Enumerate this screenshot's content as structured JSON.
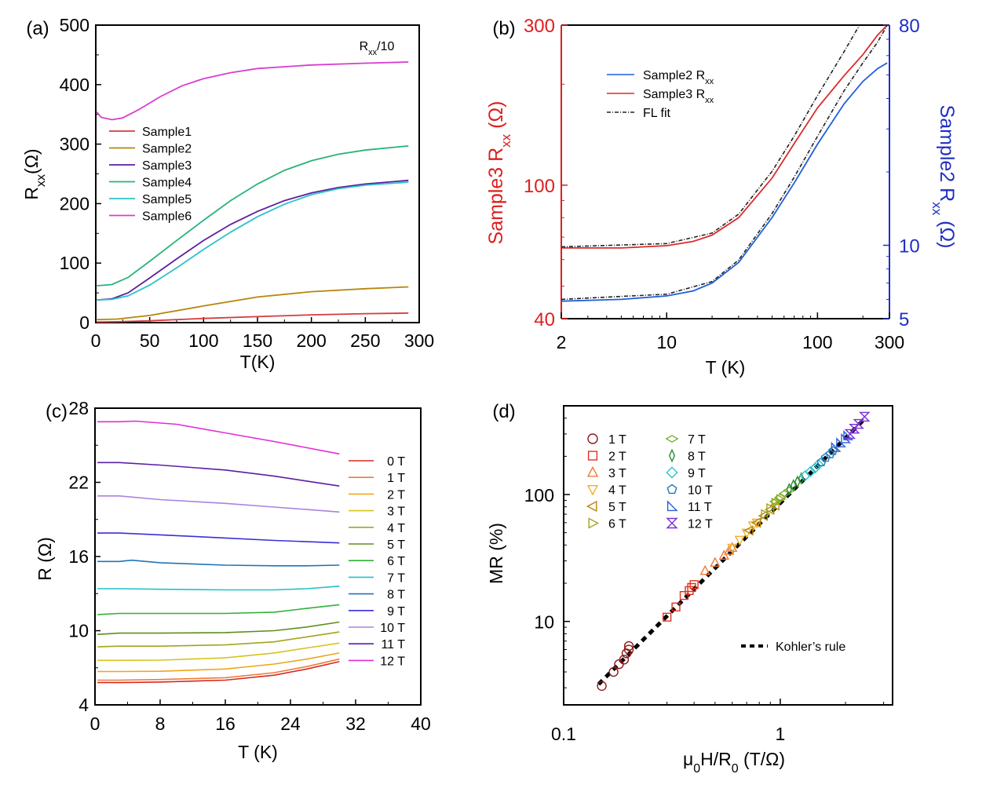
{
  "chart_data": [
    {
      "panel": "(a)",
      "type": "line",
      "xlabel": "T(K)",
      "ylabel_main": "R",
      "ylabel_sub": "xx",
      "ylabel_unit": "(Ω)",
      "xlim": [
        0,
        300
      ],
      "ylim": [
        0,
        500
      ],
      "xticks": [
        "0",
        "50",
        "100",
        "150",
        "200",
        "250",
        "300"
      ],
      "yticks": [
        "0",
        "100",
        "200",
        "300",
        "400",
        "500"
      ],
      "annotation_main": "R",
      "annotation_sub": "xx",
      "annotation_tail": "/10",
      "legend_position": "center-left",
      "series": [
        {
          "name": "Sample1",
          "color": "#d63b3b",
          "x": [
            1,
            20,
            50,
            100,
            150,
            200,
            250,
            290
          ],
          "y": [
            1,
            1.5,
            3,
            7,
            10,
            13,
            15,
            16
          ]
        },
        {
          "name": "Sample2",
          "color": "#b8860b",
          "x": [
            1,
            20,
            50,
            100,
            150,
            200,
            250,
            290
          ],
          "y": [
            5,
            6,
            12,
            28,
            43,
            52,
            57,
            60
          ]
        },
        {
          "name": "Sample3",
          "color": "#5b1f9e",
          "x": [
            1,
            15,
            30,
            50,
            75,
            100,
            125,
            150,
            175,
            200,
            225,
            250,
            290
          ],
          "y": [
            38,
            40,
            50,
            75,
            107,
            138,
            165,
            187,
            205,
            218,
            227,
            233,
            239
          ]
        },
        {
          "name": "Sample4",
          "color": "#2ab378",
          "x": [
            1,
            15,
            30,
            50,
            75,
            100,
            125,
            150,
            175,
            200,
            225,
            250,
            290
          ],
          "y": [
            62,
            64,
            76,
            103,
            138,
            172,
            205,
            233,
            256,
            272,
            283,
            290,
            297
          ]
        },
        {
          "name": "Sample5",
          "color": "#2cc2c8",
          "x": [
            1,
            15,
            30,
            50,
            75,
            100,
            125,
            150,
            175,
            200,
            225,
            250,
            290
          ],
          "y": [
            38,
            39,
            45,
            63,
            92,
            123,
            152,
            178,
            199,
            215,
            225,
            231,
            236
          ]
        },
        {
          "name": "Sample6",
          "color": "#d63fd0",
          "x": [
            1,
            5,
            15,
            25,
            40,
            60,
            80,
            100,
            125,
            150,
            200,
            250,
            290
          ],
          "y": [
            354,
            345,
            341,
            344,
            358,
            380,
            398,
            410,
            420,
            427,
            433,
            436,
            438
          ]
        }
      ]
    },
    {
      "panel": "(b)",
      "type": "line",
      "xscale": "log",
      "xlabel": "T (K)",
      "xticks": [
        "2",
        "10",
        "100",
        "300"
      ],
      "left_axis": {
        "ylabel_main": "Sample3 R",
        "ylabel_sub": "xx",
        "ylabel_unit": "(Ω)",
        "ylim": [
          40,
          300
        ],
        "yticks": [
          "40",
          "100",
          "300"
        ],
        "color": "#dd1f1f"
      },
      "right_axis": {
        "ylabel_main": "Sample2 R",
        "ylabel_sub": "xx",
        "ylabel_unit": "(Ω)",
        "ylim": [
          5,
          80
        ],
        "yticks": [
          "5",
          "10",
          "80"
        ],
        "color": "#1f2fc4"
      },
      "legend_position": "top-left",
      "series": [
        {
          "name": "Sample2 R",
          "name_sub": "xx",
          "axis": "right",
          "color": "#1f5fd8",
          "x": [
            2,
            5,
            10,
            15,
            20,
            30,
            50,
            70,
            100,
            150,
            200,
            250,
            290
          ],
          "y": [
            5.9,
            6.0,
            6.2,
            6.5,
            7.0,
            8.5,
            13,
            18,
            26,
            38,
            47,
            53,
            56
          ]
        },
        {
          "name": "Sample3 R",
          "name_sub": "xx",
          "axis": "left",
          "color": "#dd2a2a",
          "x": [
            2,
            5,
            10,
            15,
            20,
            30,
            50,
            70,
            100,
            150,
            200,
            250,
            290
          ],
          "y": [
            65,
            65,
            66,
            68,
            71,
            80,
            105,
            133,
            170,
            212,
            245,
            280,
            300
          ]
        },
        {
          "name": "FL fit",
          "axis": "left",
          "color": "#222222",
          "dash": true,
          "x": [
            2,
            10,
            20,
            30,
            50,
            70,
            100,
            150,
            190
          ],
          "y": [
            65.5,
            67,
            72,
            82,
            110,
            140,
            185,
            250,
            300
          ]
        },
        {
          "name": "FL fit",
          "axis": "right",
          "color": "#222222",
          "dash": true,
          "legend": false,
          "x": [
            2,
            10,
            20,
            30,
            50,
            70,
            100,
            150,
            200,
            250,
            290
          ],
          "y": [
            6.0,
            6.3,
            7.1,
            8.7,
            13.5,
            19,
            28,
            43,
            56,
            68,
            80
          ]
        }
      ]
    },
    {
      "panel": "(c)",
      "type": "line",
      "xlabel": "T (K)",
      "ylabel": "R (Ω)",
      "xlim": [
        0,
        40
      ],
      "ylim": [
        4,
        28
      ],
      "xticks": [
        "0",
        "8",
        "16",
        "24",
        "32",
        "40"
      ],
      "yticks": [
        "4",
        "10",
        "16",
        "22",
        "28"
      ],
      "legend_position": "right",
      "series": [
        {
          "name": "0 T",
          "color": "#d62a1f",
          "x": [
            0.3,
            3,
            8,
            16,
            22,
            26,
            30
          ],
          "y": [
            5.8,
            5.8,
            5.85,
            6.0,
            6.4,
            6.9,
            7.5
          ]
        },
        {
          "name": "1 T",
          "color": "#f07a3c",
          "x": [
            0.3,
            3,
            8,
            16,
            22,
            26,
            30
          ],
          "y": [
            6.0,
            6.0,
            6.05,
            6.2,
            6.6,
            7.1,
            7.7
          ]
        },
        {
          "name": "2 T",
          "color": "#f0a51c",
          "x": [
            0.3,
            3,
            8,
            16,
            22,
            26,
            30
          ],
          "y": [
            6.7,
            6.7,
            6.72,
            6.9,
            7.3,
            7.7,
            8.2
          ]
        },
        {
          "name": "3 T",
          "color": "#d8c21c",
          "x": [
            0.3,
            3,
            8,
            16,
            22,
            26,
            30
          ],
          "y": [
            7.6,
            7.6,
            7.62,
            7.8,
            8.2,
            8.6,
            9.0
          ]
        },
        {
          "name": "4 T",
          "color": "#a3a51c",
          "x": [
            0.3,
            3,
            8,
            16,
            22,
            26,
            30
          ],
          "y": [
            8.7,
            8.75,
            8.75,
            8.85,
            9.1,
            9.5,
            9.9
          ]
        },
        {
          "name": "5 T",
          "color": "#5c8f1c",
          "x": [
            0.3,
            3,
            8,
            16,
            22,
            26,
            30
          ],
          "y": [
            9.7,
            9.8,
            9.8,
            9.85,
            10.0,
            10.3,
            10.7
          ]
        },
        {
          "name": "6 T",
          "color": "#2fb13a",
          "x": [
            0.3,
            3,
            8,
            16,
            22,
            26,
            30
          ],
          "y": [
            11.3,
            11.4,
            11.4,
            11.4,
            11.5,
            11.8,
            12.1
          ]
        },
        {
          "name": "7 T",
          "color": "#1fc2c8",
          "x": [
            0.3,
            3,
            8,
            16,
            22,
            26,
            30
          ],
          "y": [
            13.4,
            13.4,
            13.35,
            13.3,
            13.3,
            13.4,
            13.6
          ]
        },
        {
          "name": "8 T",
          "color": "#1f74b8",
          "x": [
            0.3,
            3,
            4.5,
            8,
            16,
            22,
            26,
            30
          ],
          "y": [
            15.6,
            15.6,
            15.7,
            15.5,
            15.3,
            15.25,
            15.25,
            15.3
          ]
        },
        {
          "name": "9 T",
          "color": "#3b2fd6",
          "x": [
            0.3,
            3,
            8,
            16,
            22,
            26,
            30
          ],
          "y": [
            17.9,
            17.9,
            17.75,
            17.5,
            17.3,
            17.2,
            17.1
          ]
        },
        {
          "name": "10 T",
          "color": "#a884e0",
          "x": [
            0.3,
            3,
            8,
            16,
            22,
            26,
            30
          ],
          "y": [
            20.9,
            20.9,
            20.6,
            20.3,
            20.0,
            19.8,
            19.6
          ]
        },
        {
          "name": "11 T",
          "color": "#5a1fa3",
          "x": [
            0.3,
            3,
            8,
            16,
            22,
            26,
            30
          ],
          "y": [
            23.6,
            23.6,
            23.4,
            23.0,
            22.5,
            22.1,
            21.7
          ]
        },
        {
          "name": "12 T",
          "color": "#e02ed4",
          "x": [
            0.3,
            3,
            5,
            10,
            16,
            22,
            26,
            30
          ],
          "y": [
            26.9,
            26.9,
            26.95,
            26.7,
            26.0,
            25.3,
            24.8,
            24.3
          ]
        }
      ]
    },
    {
      "panel": "(d)",
      "type": "scatter",
      "xscale": "log",
      "yscale": "log",
      "xlabel_main": "μ",
      "xlabel_sub": "0",
      "xlabel_mid": "H/R",
      "xlabel_sub2": "0",
      "xlabel_unit": "(T/Ω)",
      "ylabel": "MR (%)",
      "xlim": [
        0.1,
        3.3
      ],
      "ylim": [
        2.2,
        500
      ],
      "xticks": [
        "0.1",
        "1"
      ],
      "yticks": [
        "10",
        "100"
      ],
      "legend_position": "top-left",
      "fit": {
        "name": "Kohler’s rule",
        "color": "#000000",
        "x": [
          0.145,
          2.4
        ],
        "y": [
          3.2,
          380
        ]
      },
      "series": [
        {
          "name": "1 T",
          "marker": "circle",
          "color": "#8b1a1a",
          "x": [
            0.15,
            0.17,
            0.18,
            0.19,
            0.195,
            0.2,
            0.2
          ],
          "y": [
            3.1,
            4.0,
            4.6,
            5.0,
            5.6,
            6.0,
            6.4
          ]
        },
        {
          "name": "2 T",
          "marker": "square",
          "color": "#e0301f",
          "x": [
            0.3,
            0.33,
            0.36,
            0.38,
            0.39,
            0.4
          ],
          "y": [
            10.8,
            13,
            16,
            17.5,
            18.5,
            19.5
          ]
        },
        {
          "name": "3 T",
          "marker": "triangle-up",
          "color": "#f07a3c",
          "x": [
            0.45,
            0.5,
            0.55,
            0.58,
            0.6
          ],
          "y": [
            25,
            29,
            33,
            36,
            38
          ]
        },
        {
          "name": "4 T",
          "marker": "triangle-down",
          "color": "#f0b02c",
          "x": [
            0.6,
            0.65,
            0.7,
            0.75,
            0.78
          ],
          "y": [
            38,
            44,
            50,
            57,
            60
          ]
        },
        {
          "name": "5 T",
          "marker": "triangle-left",
          "color": "#b8860b",
          "x": [
            0.72,
            0.78,
            0.84,
            0.9,
            0.95
          ],
          "y": [
            52,
            60,
            68,
            76,
            82
          ]
        },
        {
          "name": "6 T",
          "marker": "triangle-right",
          "color": "#a3a51c",
          "x": [
            0.85,
            0.9,
            0.95,
            1.0
          ],
          "y": [
            70,
            78,
            86,
            92
          ]
        },
        {
          "name": "7 T",
          "marker": "diamond-wide",
          "color": "#7ab32c",
          "x": [
            0.95,
            1.0,
            1.05,
            1.1
          ],
          "y": [
            88,
            95,
            102,
            108
          ]
        },
        {
          "name": "8 T",
          "marker": "diamond-narrow",
          "color": "#2e8b2e",
          "x": [
            1.1,
            1.15,
            1.2,
            1.25
          ],
          "y": [
            110,
            118,
            126,
            134
          ]
        },
        {
          "name": "9 T",
          "marker": "diamond",
          "color": "#2cc2c8",
          "x": [
            1.3,
            1.38,
            1.45,
            1.5
          ],
          "y": [
            140,
            152,
            162,
            172
          ]
        },
        {
          "name": "10 T",
          "marker": "pentagon",
          "color": "#1f7ab8",
          "x": [
            1.55,
            1.62,
            1.7,
            1.75
          ],
          "y": [
            180,
            195,
            208,
            220
          ]
        },
        {
          "name": "11 T",
          "marker": "right-triangle",
          "color": "#2e5fd6",
          "x": [
            1.8,
            1.9,
            2.0,
            2.05
          ],
          "y": [
            235,
            255,
            275,
            290
          ]
        },
        {
          "name": "12 T",
          "marker": "hourglass",
          "color": "#7a2ed6",
          "x": [
            2.1,
            2.2,
            2.3,
            2.45
          ],
          "y": [
            300,
            330,
            360,
            410
          ]
        }
      ]
    }
  ]
}
